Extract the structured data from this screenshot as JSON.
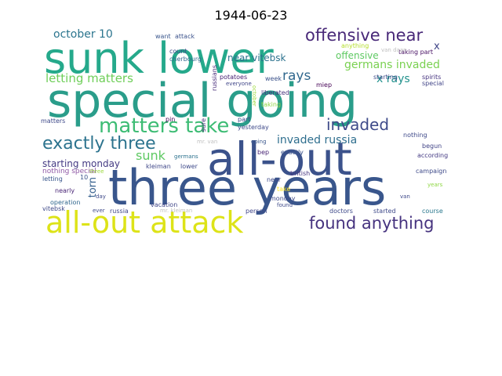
{
  "title": "1944-06-23",
  "words": [
    {
      "text": "sunk lower",
      "color": "#25a98b"
    },
    {
      "text": "special going",
      "color": "#2a9d8a"
    },
    {
      "text": "three years",
      "color": "#39568c"
    },
    {
      "text": "all-out",
      "color": "#3b528b"
    },
    {
      "text": "all-out attack",
      "color": "#dde318"
    },
    {
      "text": "matters take",
      "color": "#3dbc74"
    },
    {
      "text": "exactly three",
      "color": "#2c738e"
    },
    {
      "text": "offensive near",
      "color": "#482878"
    },
    {
      "text": "found anything",
      "color": "#46337f"
    },
    {
      "text": "invaded",
      "color": "#3e4a89"
    },
    {
      "text": "letting matters",
      "color": "#6ece58"
    },
    {
      "text": "invaded russia",
      "color": "#2e6e8e"
    },
    {
      "text": "rays",
      "color": "#31688e"
    },
    {
      "text": "germans invaded",
      "color": "#7ad151"
    },
    {
      "text": "x rays",
      "color": "#21918c"
    },
    {
      "text": "october 10",
      "color": "#2b758e"
    },
    {
      "text": "near vitebsk",
      "color": "#2c728e"
    },
    {
      "text": "offensive",
      "color": "#5ec962"
    },
    {
      "text": "starting monday",
      "color": "#443a83"
    },
    {
      "text": "sunk",
      "color": "#5ec962"
    },
    {
      "text": "torn",
      "color": "#355f8d"
    },
    {
      "text": "nothing special",
      "color": "#8f58a5"
    },
    {
      "text": "x",
      "color": "#404688"
    },
    {
      "text": "want",
      "color": "#39568c"
    },
    {
      "text": "attack",
      "color": "#3b528b"
    },
    {
      "text": "count",
      "color": "#3e4989"
    },
    {
      "text": "cherbourg",
      "color": "#31688e"
    },
    {
      "text": "russians",
      "color": "#472c7a"
    },
    {
      "text": "potatoes",
      "color": "#482173"
    },
    {
      "text": "week",
      "color": "#3b528b"
    },
    {
      "text": "spirits",
      "color": "#46337f"
    },
    {
      "text": "special",
      "color": "#414487"
    },
    {
      "text": "anything",
      "color": "#b5de2b"
    },
    {
      "text": "taking part",
      "color": "#471063"
    },
    {
      "text": "van daan",
      "color": "#c0c0c0"
    },
    {
      "text": "starting",
      "color": "#3e4a89"
    },
    {
      "text": "liberated",
      "color": "#46327e"
    },
    {
      "text": "taking",
      "color": "#8fd744"
    },
    {
      "text": "part",
      "color": "#3f4788"
    },
    {
      "text": "yesterday",
      "color": "#3e4989"
    },
    {
      "text": "pin",
      "color": "#440154"
    },
    {
      "text": "matters",
      "color": "#3e4989"
    },
    {
      "text": "mr. van",
      "color": "#c0c0c0"
    },
    {
      "text": "sure",
      "color": "#482878"
    },
    {
      "text": "october",
      "color": "#9bd93c"
    },
    {
      "text": "miep",
      "color": "#440154"
    },
    {
      "text": "exactly",
      "color": "#3b528b"
    },
    {
      "text": "bep",
      "color": "#482475"
    },
    {
      "text": "nothing",
      "color": "#3e4989"
    },
    {
      "text": "begun",
      "color": "#414487"
    },
    {
      "text": "according",
      "color": "#443a83"
    },
    {
      "text": "campaign",
      "color": "#3e4a89"
    },
    {
      "text": "kleiman",
      "color": "#3f4788"
    },
    {
      "text": "lower",
      "color": "#3e4a89"
    },
    {
      "text": "germans",
      "color": "#2c728e"
    },
    {
      "text": "letting",
      "color": "#39568c"
    },
    {
      "text": "10",
      "color": "#3b528b"
    },
    {
      "text": "three",
      "color": "#9bd93c"
    },
    {
      "text": "vitebsk",
      "color": "#3e4989"
    },
    {
      "text": "nearly",
      "color": "#482475"
    },
    {
      "text": "near",
      "color": "#3e4a89"
    },
    {
      "text": "take",
      "color": "#fde725"
    },
    {
      "text": "british",
      "color": "#46337f"
    },
    {
      "text": "day",
      "color": "#3e4989"
    },
    {
      "text": "operation",
      "color": "#31688e"
    },
    {
      "text": "vacation",
      "color": "#404688"
    },
    {
      "text": "monday",
      "color": "#3e4a89"
    },
    {
      "text": "found",
      "color": "#3e4a89"
    },
    {
      "text": "van",
      "color": "#3e4989"
    },
    {
      "text": "ever",
      "color": "#3e4989"
    },
    {
      "text": "russia",
      "color": "#3f4788"
    },
    {
      "text": "mr. kleiman",
      "color": "#c0c0c0"
    },
    {
      "text": "person",
      "color": "#404688"
    },
    {
      "text": "doctors",
      "color": "#3e4989"
    },
    {
      "text": "started",
      "color": "#3e4989"
    },
    {
      "text": "course",
      "color": "#2a788e"
    },
    {
      "text": "years",
      "color": "#8fd744"
    },
    {
      "text": "everyone",
      "color": "#404688"
    },
    {
      "text": "going",
      "color": "#39568c"
    }
  ]
}
